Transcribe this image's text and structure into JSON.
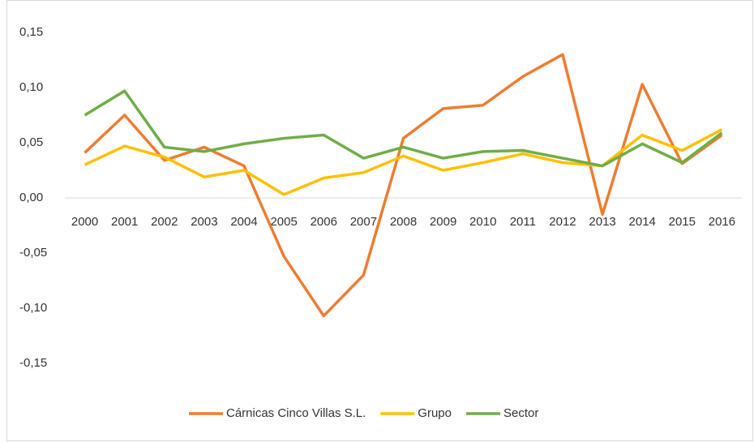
{
  "chart_data": {
    "type": "line",
    "categories": [
      "2000",
      "2001",
      "2002",
      "2003",
      "2004",
      "2005",
      "2006",
      "2007",
      "2008",
      "2009",
      "2010",
      "2011",
      "2012",
      "2013",
      "2014",
      "2015",
      "2016"
    ],
    "series": [
      {
        "name": "Cárnicas Cinco Villas S.L.",
        "color": "#ed7d31",
        "values": [
          0.041,
          0.075,
          0.034,
          0.046,
          0.029,
          -0.053,
          -0.107,
          -0.07,
          0.054,
          0.081,
          0.084,
          0.11,
          0.13,
          -0.015,
          0.103,
          0.031,
          0.057
        ]
      },
      {
        "name": "Grupo",
        "color": "#ffc000",
        "values": [
          0.03,
          0.047,
          0.037,
          0.019,
          0.025,
          0.003,
          0.018,
          0.023,
          0.038,
          0.025,
          0.032,
          0.04,
          0.032,
          0.029,
          0.057,
          0.043,
          0.062
        ]
      },
      {
        "name": "Sector",
        "color": "#70ad47",
        "values": [
          0.075,
          0.097,
          0.046,
          0.042,
          0.049,
          0.054,
          0.057,
          0.036,
          0.046,
          0.036,
          0.042,
          0.043,
          0.036,
          0.029,
          0.049,
          0.032,
          0.059
        ]
      }
    ],
    "ylim": [
      -0.15,
      0.15
    ],
    "yticks": [
      {
        "value": -0.15,
        "label": "-0,15"
      },
      {
        "value": -0.1,
        "label": "-0,10"
      },
      {
        "value": -0.05,
        "label": "-0,05"
      },
      {
        "value": 0,
        "label": "0,00"
      },
      {
        "value": 0.05,
        "label": "0,05"
      },
      {
        "value": 0.1,
        "label": "0,10"
      },
      {
        "value": 0.15,
        "label": "0,15"
      }
    ],
    "legend": "bottom"
  }
}
